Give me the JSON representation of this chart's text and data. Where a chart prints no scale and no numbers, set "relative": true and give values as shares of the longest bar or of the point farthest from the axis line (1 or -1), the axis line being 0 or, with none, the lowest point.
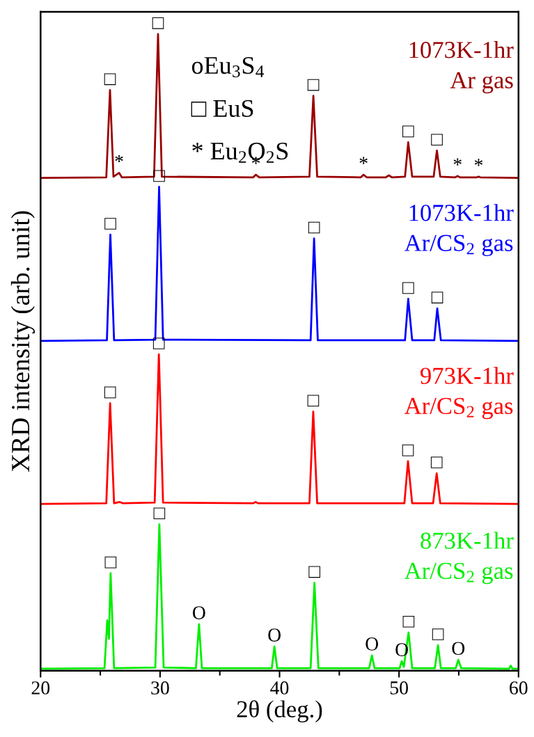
{
  "chart_data": {
    "type": "line",
    "relative": true,
    "xlabel": "2θ (deg.)",
    "ylabel": "XRD intensity (arb. unit)",
    "xlim": [
      20,
      60
    ],
    "xticks": [
      20,
      30,
      40,
      50,
      60
    ],
    "tick_labels": "x",
    "grid": false,
    "marker": "none",
    "line_style": "solid",
    "series": [
      {
        "name": "1073K-1hr\nAr gas",
        "color": "#990000",
        "x": [
          20,
          25.5,
          25.81,
          26.1,
          26.57,
          26.8,
          29.5,
          29.83,
          30.15,
          37.8,
          38.02,
          38.3,
          42.5,
          42.83,
          43.15,
          46.8,
          47.03,
          47.3,
          48.9,
          49.15,
          49.4,
          50.5,
          50.77,
          51.1,
          52.9,
          53.17,
          53.45,
          54.7,
          54.9,
          55.1,
          56.5,
          56.66,
          56.8,
          60
        ],
        "values": [
          0.774,
          0.775,
          0.912,
          0.776,
          0.782,
          0.775,
          0.776,
          1.0,
          0.776,
          0.775,
          0.779,
          0.775,
          0.776,
          0.903,
          0.776,
          0.775,
          0.779,
          0.775,
          0.775,
          0.778,
          0.775,
          0.776,
          0.83,
          0.776,
          0.776,
          0.817,
          0.776,
          0.775,
          0.777,
          0.775,
          0.775,
          0.776,
          0.775,
          0.774
        ]
      },
      {
        "name": "1073K-1hr\nAr/CS$_{2}$ gas",
        "color": "#0000ff",
        "x": [
          20,
          25.55,
          25.84,
          26.15,
          29.6,
          29.92,
          30.25,
          42.6,
          42.89,
          43.2,
          50.5,
          50.77,
          51.1,
          52.95,
          53.2,
          53.5,
          60
        ],
        "values": [
          0.518,
          0.519,
          0.685,
          0.519,
          0.52,
          0.76,
          0.52,
          0.519,
          0.679,
          0.519,
          0.519,
          0.584,
          0.519,
          0.519,
          0.569,
          0.519,
          0.518
        ]
      },
      {
        "name": "973K-1hr\nAr/CS$_{2}$ gas",
        "color": "#ff0000",
        "x": [
          20,
          25.5,
          25.82,
          26.15,
          26.6,
          26.9,
          29.55,
          29.9,
          30.25,
          37.8,
          38.0,
          38.2,
          42.5,
          42.82,
          43.15,
          50.45,
          50.75,
          51.1,
          52.85,
          53.15,
          53.45,
          60
        ],
        "values": [
          0.262,
          0.263,
          0.42,
          0.263,
          0.265,
          0.263,
          0.264,
          0.497,
          0.264,
          0.263,
          0.265,
          0.263,
          0.263,
          0.407,
          0.263,
          0.263,
          0.329,
          0.263,
          0.263,
          0.31,
          0.263,
          0.262
        ]
      },
      {
        "name": "873K-1hr\nAr/CS$_{2}$ gas",
        "color": "#00ee00",
        "x": [
          20,
          25.35,
          25.58,
          25.72,
          25.86,
          26.15,
          29.6,
          29.94,
          30.3,
          33.0,
          33.26,
          33.5,
          39.35,
          39.57,
          39.8,
          42.6,
          42.92,
          43.25,
          47.5,
          47.73,
          47.95,
          50.05,
          50.23,
          50.4,
          50.8,
          51.1,
          53.0,
          53.26,
          53.5,
          54.75,
          54.96,
          55.2,
          59.2,
          59.35,
          59.5,
          60
        ],
        "values": [
          0.003,
          0.004,
          0.079,
          0.05,
          0.153,
          0.004,
          0.005,
          0.23,
          0.005,
          0.004,
          0.073,
          0.004,
          0.004,
          0.038,
          0.004,
          0.004,
          0.138,
          0.004,
          0.004,
          0.024,
          0.004,
          0.004,
          0.015,
          0.006,
          0.06,
          0.004,
          0.004,
          0.04,
          0.004,
          0.004,
          0.017,
          0.004,
          0.003,
          0.008,
          0.003,
          0.003
        ]
      }
    ],
    "annotations": [
      "oEu$_{3}$S$_{4}$",
      "□ EuS",
      "* Eu$_{2}$O$_{2}$S",
      {
        "text": "□",
        "x": 25.81,
        "y": 0.912
      },
      {
        "text": "□",
        "x": 29.83,
        "y": 1.0
      },
      {
        "text": "□",
        "x": 42.83,
        "y": 0.903
      },
      {
        "text": "□",
        "x": 50.77,
        "y": 0.83
      },
      {
        "text": "□",
        "x": 53.17,
        "y": 0.817
      },
      {
        "text": "*",
        "x": 26.57,
        "y": 0.782
      },
      {
        "text": "*",
        "x": 38.02,
        "y": 0.779
      },
      {
        "text": "*",
        "x": 47.03,
        "y": 0.779
      },
      {
        "text": "*",
        "x": 54.9,
        "y": 0.777
      },
      {
        "text": "*",
        "x": 56.66,
        "y": 0.776
      },
      {
        "text": "□",
        "x": 25.84,
        "y": 0.685
      },
      {
        "text": "□",
        "x": 29.92,
        "y": 0.76
      },
      {
        "text": "□",
        "x": 42.89,
        "y": 0.679
      },
      {
        "text": "□",
        "x": 50.77,
        "y": 0.584
      },
      {
        "text": "□",
        "x": 53.2,
        "y": 0.569
      },
      {
        "text": "□",
        "x": 25.82,
        "y": 0.42
      },
      {
        "text": "□",
        "x": 29.9,
        "y": 0.497
      },
      {
        "text": "□",
        "x": 42.82,
        "y": 0.407
      },
      {
        "text": "□",
        "x": 50.75,
        "y": 0.329
      },
      {
        "text": "□",
        "x": 53.15,
        "y": 0.31
      },
      {
        "text": "□",
        "x": 25.86,
        "y": 0.153
      },
      {
        "text": "□",
        "x": 29.94,
        "y": 0.23
      },
      {
        "text": "□",
        "x": 42.92,
        "y": 0.138
      },
      {
        "text": "□",
        "x": 50.8,
        "y": 0.06
      },
      {
        "text": "□",
        "x": 53.26,
        "y": 0.04
      },
      {
        "text": "O",
        "x": 33.26,
        "y": 0.073
      },
      {
        "text": "O",
        "x": 39.57,
        "y": 0.038
      },
      {
        "text": "O",
        "x": 47.73,
        "y": 0.024
      },
      {
        "text": "O",
        "x": 50.23,
        "y": 0.015
      },
      {
        "text": "O",
        "x": 54.96,
        "y": 0.017
      }
    ]
  }
}
